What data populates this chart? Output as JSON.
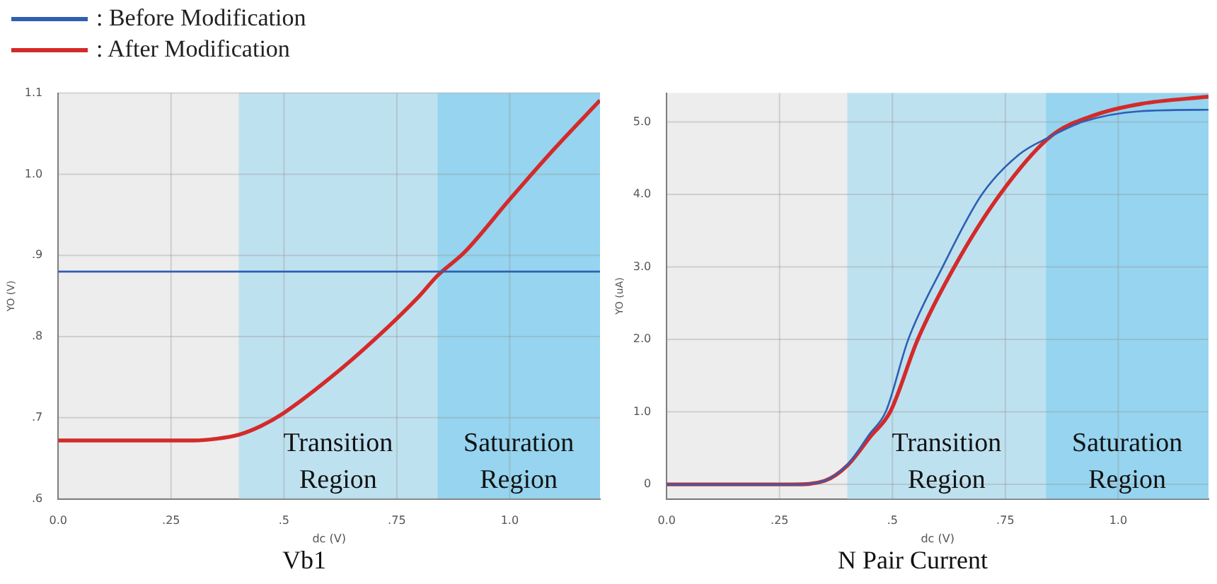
{
  "chart_data": [
    {
      "type": "line",
      "title": "Vb1",
      "xlabel": "dc (V)",
      "ylabel": "YO (V)",
      "legend": "top left",
      "grid": true,
      "marker": "none",
      "line_style": "solid",
      "xlim": [
        0,
        1.2
      ],
      "ylim": [
        0.6,
        1.1
      ],
      "xticks": [
        {
          "value": 0,
          "label": "0.0"
        },
        {
          "value": 0.25,
          "label": ".25"
        },
        {
          "value": 0.5,
          "label": ".5"
        },
        {
          "value": 0.75,
          "label": ".75"
        },
        {
          "value": 1.0,
          "label": "1.0"
        }
      ],
      "yticks": [
        {
          "value": 0.6,
          "label": ".6"
        },
        {
          "value": 0.7,
          "label": ".7"
        },
        {
          "value": 0.8,
          "label": ".8"
        },
        {
          "value": 0.9,
          "label": ".9"
        },
        {
          "value": 1.0,
          "label": "1.0"
        },
        {
          "value": 1.1,
          "label": "1.1"
        }
      ],
      "bands": [
        {
          "axis": "x",
          "from": 0.4,
          "to": 0.84,
          "label": "Transition Region",
          "color": "#b5def0"
        },
        {
          "axis": "x",
          "from": 0.84,
          "to": 1.2,
          "label": "Saturation Region",
          "color": "#86cfee"
        }
      ],
      "series": [
        {
          "name": ": Before Modification",
          "color": "#2f5fb3",
          "x": [
            0,
            1.2
          ],
          "values": [
            0.88,
            0.88
          ]
        },
        {
          "name": ": After Modification",
          "color": "#d42a2a",
          "x": [
            0,
            0.2,
            0.3,
            0.35,
            0.4,
            0.45,
            0.5,
            0.6,
            0.7,
            0.8,
            0.84,
            0.9,
            1.0,
            1.1,
            1.2
          ],
          "values": [
            0.672,
            0.672,
            0.672,
            0.674,
            0.679,
            0.69,
            0.706,
            0.748,
            0.796,
            0.85,
            0.875,
            0.904,
            0.969,
            1.032,
            1.091
          ]
        }
      ]
    },
    {
      "type": "line",
      "title": "N Pair Current",
      "xlabel": "dc (V)",
      "ylabel": "YO (uA)",
      "grid": true,
      "marker": "none",
      "line_style": "solid",
      "xlim": [
        0,
        1.2
      ],
      "ylim": [
        -0.2,
        5.4
      ],
      "xticks": [
        {
          "value": 0,
          "label": "0.0"
        },
        {
          "value": 0.25,
          "label": ".25"
        },
        {
          "value": 0.5,
          "label": ".5"
        },
        {
          "value": 0.75,
          "label": ".75"
        },
        {
          "value": 1.0,
          "label": "1.0"
        }
      ],
      "yticks": [
        {
          "value": 0,
          "label": "0"
        },
        {
          "value": 1,
          "label": "1.0"
        },
        {
          "value": 2,
          "label": "2.0"
        },
        {
          "value": 3,
          "label": "3.0"
        },
        {
          "value": 4,
          "label": "4.0"
        },
        {
          "value": 5,
          "label": "5.0"
        }
      ],
      "bands": [
        {
          "axis": "x",
          "from": 0.4,
          "to": 0.84,
          "label": "Transition Region",
          "color": "#b5def0"
        },
        {
          "axis": "x",
          "from": 0.84,
          "to": 1.2,
          "label": "Saturation Region",
          "color": "#86cfee"
        }
      ],
      "series": [
        {
          "color": "#2f5fb3",
          "x": [
            0,
            0.28,
            0.35,
            0.4,
            0.45,
            0.485,
            0.535,
            0.611,
            0.698,
            0.78,
            0.85,
            0.92,
            1.05,
            1.2
          ],
          "values": [
            0,
            0,
            0.05,
            0.27,
            0.7,
            1.0,
            2.0,
            3.0,
            4.0,
            4.55,
            4.8,
            5.0,
            5.15,
            5.17
          ]
        },
        {
          "color": "#d42a2a",
          "x": [
            0,
            0.28,
            0.35,
            0.4,
            0.45,
            0.495,
            0.556,
            0.637,
            0.738,
            0.85,
            0.95,
            1.05,
            1.2
          ],
          "values": [
            0,
            0,
            0.05,
            0.26,
            0.65,
            1.0,
            2.0,
            3.0,
            4.0,
            4.8,
            5.1,
            5.25,
            5.35
          ]
        }
      ]
    }
  ]
}
